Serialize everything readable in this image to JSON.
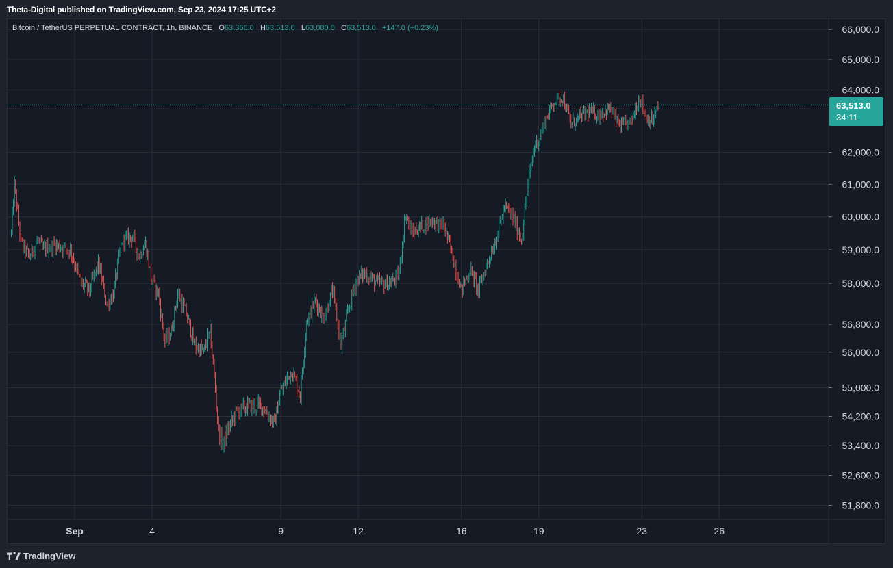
{
  "header": {
    "published_text": "Theta-Digital published on TradingView.com, Sep 23, 2024 17:25 UTC+2"
  },
  "legend": {
    "symbol": "Bitcoin / TetherUS PERPETUAL CONTRACT, 1h, BINANCE",
    "o_label": "O",
    "o_value": "63,366.0",
    "h_label": "H",
    "h_value": "63,513.0",
    "l_label": "L",
    "l_value": "63,080.0",
    "c_label": "C",
    "c_value": "63,513.0",
    "change": "+147.0 (+0.23%)"
  },
  "price_tag": {
    "price": "63,513.0",
    "countdown": "34:11"
  },
  "footer": {
    "brand": "TradingView"
  },
  "colors": {
    "up": "#26a69a",
    "down": "#ef5350",
    "background": "#161a25",
    "grid": "#2a2e39",
    "text": "#d1d4dc"
  },
  "chart_data": {
    "type": "candlestick",
    "interval": "1h",
    "scale": "log",
    "grid": true,
    "x_ticks": [
      "Sep",
      "4",
      "9",
      "12",
      "16",
      "19",
      "23",
      "26"
    ],
    "y_ticks": [
      66000,
      65000,
      64000,
      62000,
      61000,
      60000,
      59000,
      58000,
      56800,
      56000,
      55000,
      54200,
      53400,
      52600,
      51800
    ],
    "y_tick_labels": [
      "66,000.0",
      "65,000.0",
      "64,000.0",
      "62,000.0",
      "61,000.0",
      "60,000.0",
      "59,000.0",
      "58,000.0",
      "56,800.0",
      "56,000.0",
      "55,000.0",
      "54,200.0",
      "53,400.0",
      "52,600.0",
      "51,800.0"
    ],
    "ylim": [
      51450,
      66350
    ],
    "last_price": 63513,
    "path_dates": [
      "2024-08-29 13:00",
      "2024-08-29 16:00",
      "2024-08-29 22:00",
      "2024-08-30 06:00",
      "2024-08-30 14:00",
      "2024-08-30 18:00",
      "2024-08-31 06:00",
      "2024-08-31 20:00",
      "2024-09-01 06:00",
      "2024-09-01 14:00",
      "2024-09-01 22:00",
      "2024-09-02 06:00",
      "2024-09-02 12:00",
      "2024-09-02 20:00",
      "2024-09-03 06:00",
      "2024-09-03 12:00",
      "2024-09-03 18:00",
      "2024-09-04 00:00",
      "2024-09-04 06:00",
      "2024-09-04 12:00",
      "2024-09-04 18:00",
      "2024-09-05 00:00",
      "2024-09-05 08:00",
      "2024-09-05 16:00",
      "2024-09-06 00:00",
      "2024-09-06 06:00",
      "2024-09-06 10:00",
      "2024-09-06 14:00",
      "2024-09-06 18:00",
      "2024-09-06 22:00",
      "2024-09-07 06:00",
      "2024-09-07 18:00",
      "2024-09-08 06:00",
      "2024-09-08 18:00",
      "2024-09-09 00:00",
      "2024-09-09 10:00",
      "2024-09-09 18:00",
      "2024-09-10 00:00",
      "2024-09-10 08:00",
      "2024-09-10 16:00",
      "2024-09-11 00:00",
      "2024-09-11 08:00",
      "2024-09-11 14:00",
      "2024-09-11 22:00",
      "2024-09-12 06:00",
      "2024-09-12 18:00",
      "2024-09-13 06:00",
      "2024-09-13 14:00",
      "2024-09-13 20:00",
      "2024-09-14 02:00",
      "2024-09-14 10:00",
      "2024-09-14 20:00",
      "2024-09-15 08:00",
      "2024-09-15 16:00",
      "2024-09-16 00:00",
      "2024-09-16 08:00",
      "2024-09-16 16:00",
      "2024-09-17 00:00",
      "2024-09-17 08:00",
      "2024-09-17 16:00",
      "2024-09-17 22:00",
      "2024-09-18 02:00",
      "2024-09-18 08:00",
      "2024-09-18 14:00",
      "2024-09-18 20:00",
      "2024-09-19 00:00",
      "2024-09-19 06:00",
      "2024-09-19 14:00",
      "2024-09-19 22:00",
      "2024-09-20 06:00",
      "2024-09-20 14:00",
      "2024-09-20 22:00",
      "2024-09-21 08:00",
      "2024-09-21 18:00",
      "2024-09-22 04:00",
      "2024-09-22 14:00",
      "2024-09-22 22:00",
      "2024-09-23 04:00",
      "2024-09-23 10:00",
      "2024-09-23 16:00"
    ],
    "path_close": [
      59500,
      61000,
      59200,
      58800,
      59300,
      59000,
      59150,
      59000,
      58000,
      57800,
      58600,
      57400,
      57700,
      59300,
      59400,
      58800,
      59200,
      58000,
      57700,
      56300,
      56600,
      57700,
      57100,
      56200,
      56000,
      56600,
      55300,
      53800,
      53400,
      53800,
      54300,
      54500,
      54500,
      54000,
      54900,
      55500,
      54800,
      56900,
      57500,
      57000,
      57800,
      56200,
      57100,
      58100,
      58300,
      58000,
      58000,
      58300,
      60100,
      59500,
      59700,
      59900,
      59700,
      58800,
      57800,
      58400,
      57800,
      58600,
      59300,
      60300,
      60100,
      59800,
      59300,
      61000,
      62200,
      62400,
      63000,
      63600,
      63800,
      62900,
      63100,
      63300,
      63200,
      63400,
      62800,
      63000,
      63800,
      63100,
      63000,
      63513
    ]
  }
}
